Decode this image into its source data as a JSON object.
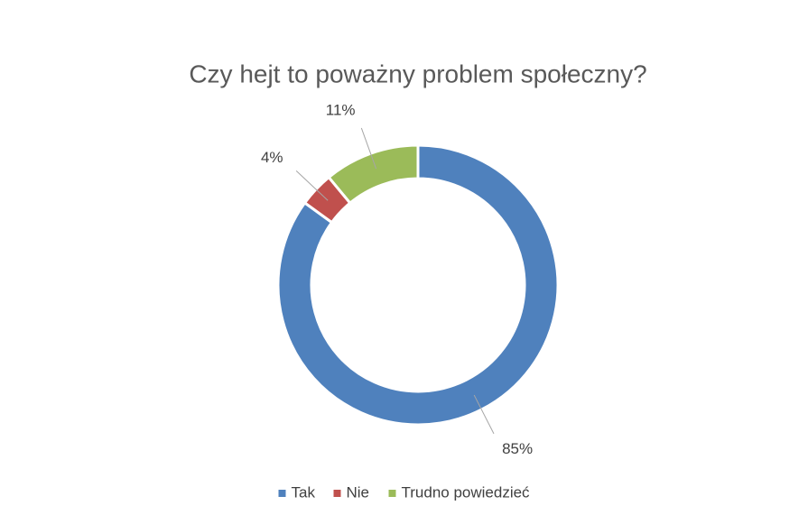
{
  "chart_data": {
    "type": "donut",
    "title": "Czy hejt to poważny problem społeczny?",
    "categories": [
      "Tak",
      "Nie",
      "Trudno powiedzieć"
    ],
    "values": [
      85,
      4,
      11
    ],
    "value_labels": [
      "85%",
      "4%",
      "11%"
    ],
    "colors": [
      "#4f81bd",
      "#c0504d",
      "#9bbb59"
    ],
    "legend": "bottom"
  }
}
